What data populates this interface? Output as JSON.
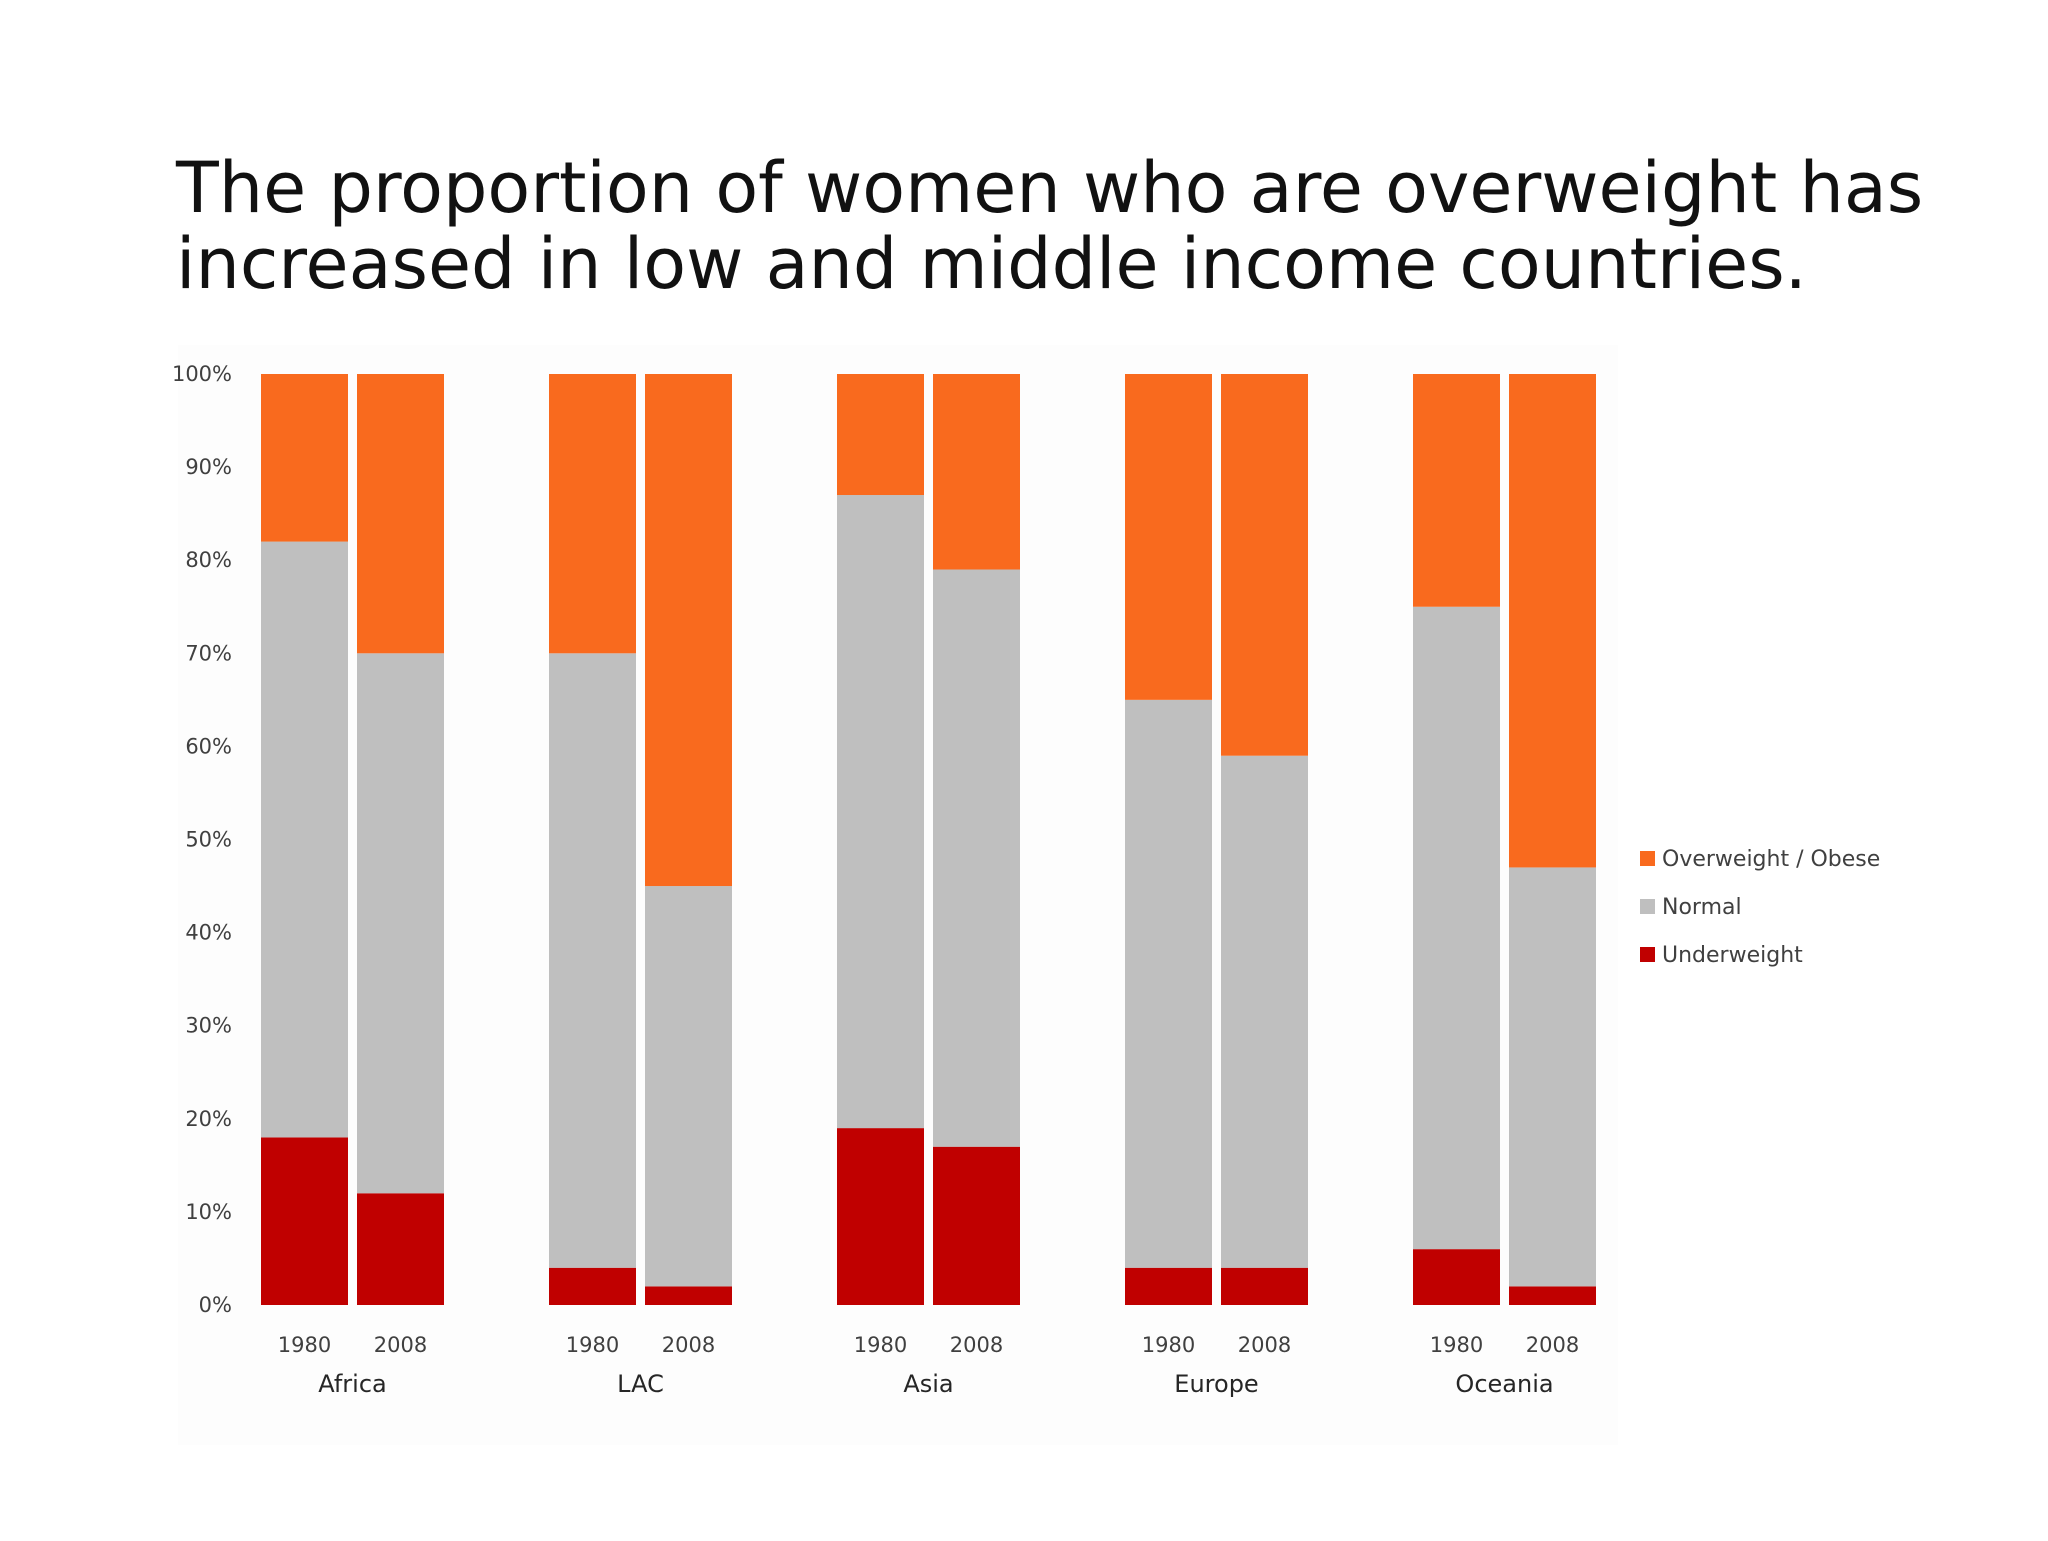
{
  "slide": {
    "title_line1": "The proportion of women who are overweight has",
    "title_line2": "increased in low and middle income countries."
  },
  "chart_data": {
    "type": "bar",
    "stacked": true,
    "percent_stacked": true,
    "title": "",
    "xlabel": "",
    "ylabel": "",
    "ylim": [
      0,
      100
    ],
    "y_ticks": [
      "0%",
      "10%",
      "20%",
      "30%",
      "40%",
      "50%",
      "60%",
      "70%",
      "80%",
      "90%",
      "100%"
    ],
    "grid": false,
    "legend_position": "right",
    "groups": [
      {
        "name": "Africa",
        "bars": [
          {
            "year": "1980",
            "underweight": 18,
            "normal": 64,
            "overweight": 18
          },
          {
            "year": "2008",
            "underweight": 12,
            "normal": 58,
            "overweight": 30
          }
        ]
      },
      {
        "name": "LAC",
        "bars": [
          {
            "year": "1980",
            "underweight": 4,
            "normal": 66,
            "overweight": 30
          },
          {
            "year": "2008",
            "underweight": 2,
            "normal": 43,
            "overweight": 55
          }
        ]
      },
      {
        "name": "Asia",
        "bars": [
          {
            "year": "1980",
            "underweight": 19,
            "normal": 68,
            "overweight": 13
          },
          {
            "year": "2008",
            "underweight": 17,
            "normal": 62,
            "overweight": 21
          }
        ]
      },
      {
        "name": "Europe",
        "bars": [
          {
            "year": "1980",
            "underweight": 4,
            "normal": 61,
            "overweight": 35
          },
          {
            "year": "2008",
            "underweight": 4,
            "normal": 55,
            "overweight": 41
          }
        ]
      },
      {
        "name": "Oceania",
        "bars": [
          {
            "year": "1980",
            "underweight": 6,
            "normal": 69,
            "overweight": 25
          },
          {
            "year": "2008",
            "underweight": 2,
            "normal": 45,
            "overweight": 53
          }
        ]
      }
    ],
    "series": [
      {
        "key": "overweight",
        "name": "Overweight / Obese",
        "color": "#F96A1E"
      },
      {
        "key": "normal",
        "name": "Normal",
        "color": "#BFBFBF"
      },
      {
        "key": "underweight",
        "name": "Underweight",
        "color": "#C00000"
      }
    ]
  }
}
